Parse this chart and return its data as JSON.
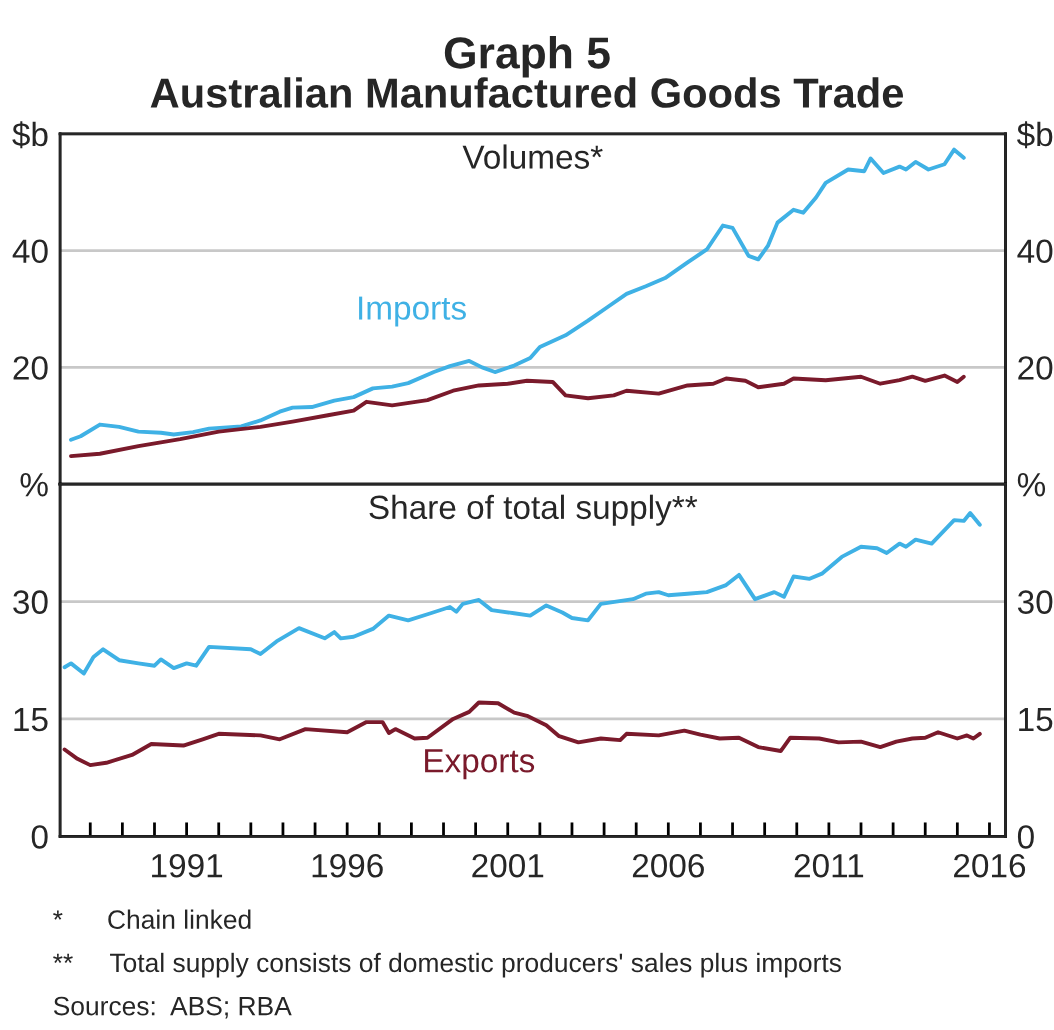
{
  "chart_data": [
    {
      "type": "line",
      "title": "Graph 5",
      "subtitle": "Australian Manufactured Goods Trade",
      "annotations": [
        "Volumes*"
      ],
      "tick_labels": "y",
      "grid": "y",
      "legend": false,
      "xlim": [
        1987.06,
        2016.5
      ],
      "ylim": [
        0,
        60
      ],
      "yticks": [
        20,
        40,
        {
          "value": 60,
          "label": "$b"
        }
      ],
      "y2lim": [
        0,
        60
      ],
      "y2ticks": [
        20,
        40,
        {
          "value": 60,
          "label": "$b"
        }
      ],
      "series": [
        {
          "name": "Imports",
          "color": "#3fb1e5",
          "x": [
            1987.4,
            1987.7,
            1988.3,
            1988.9,
            1989.5,
            1990.2,
            1990.6,
            1991.2,
            1991.7,
            1992.7,
            1993.3,
            1993.9,
            1994.3,
            1994.9,
            1995.6,
            1996.2,
            1996.8,
            1997.4,
            1997.9,
            1998.7,
            1999.2,
            1999.8,
            2000.2,
            2000.6,
            2001.2,
            2001.7,
            2002.0,
            2002.8,
            2003.5,
            2004.1,
            2004.7,
            2005.3,
            2005.9,
            2006.6,
            2007.2,
            2007.7,
            2008.0,
            2008.5,
            2008.8,
            2009.1,
            2009.4,
            2009.9,
            2010.2,
            2010.6,
            2010.9,
            2011.6,
            2012.1,
            2012.3,
            2012.7,
            2013.2,
            2013.4,
            2013.7,
            2014.1,
            2014.6,
            2014.9,
            2015.2
          ],
          "values": [
            7.6,
            8.2,
            10.2,
            9.8,
            9.0,
            8.8,
            8.5,
            8.9,
            9.5,
            9.9,
            10.9,
            12.4,
            13.1,
            13.2,
            14.3,
            14.9,
            16.4,
            16.7,
            17.3,
            19.2,
            20.2,
            21.1,
            20.0,
            19.2,
            20.3,
            21.6,
            23.5,
            25.5,
            28.0,
            30.3,
            32.6,
            33.9,
            35.3,
            38.0,
            40.2,
            44.3,
            43.9,
            39.1,
            38.5,
            40.8,
            44.8,
            47.0,
            46.5,
            49.1,
            51.6,
            53.9,
            53.6,
            55.8,
            53.3,
            54.4,
            53.9,
            55.2,
            53.9,
            54.8,
            57.3,
            55.9
          ]
        },
        {
          "color": "#7a1a2b",
          "x": [
            1987.4,
            1988.3,
            1989.5,
            1990.8,
            1992.0,
            1993.3,
            1994.3,
            1995.4,
            1996.2,
            1996.6,
            1997.4,
            1998.5,
            1999.3,
            2000.1,
            2001.0,
            2001.6,
            2002.4,
            2002.8,
            2003.5,
            2004.3,
            2004.7,
            2005.7,
            2006.6,
            2007.4,
            2007.8,
            2008.4,
            2008.8,
            2009.6,
            2009.9,
            2010.9,
            2012.0,
            2012.6,
            2013.2,
            2013.6,
            2014.0,
            2014.6,
            2015.0,
            2015.2
          ],
          "values": [
            4.8,
            5.2,
            6.5,
            7.7,
            9.0,
            9.8,
            10.7,
            11.8,
            12.6,
            14.1,
            13.5,
            14.4,
            16.0,
            16.9,
            17.2,
            17.7,
            17.5,
            15.2,
            14.7,
            15.2,
            16.0,
            15.5,
            16.9,
            17.2,
            18.1,
            17.7,
            16.6,
            17.2,
            18.1,
            17.8,
            18.4,
            17.2,
            17.8,
            18.4,
            17.7,
            18.6,
            17.5,
            18.4
          ]
        }
      ]
    },
    {
      "type": "line",
      "annotations": [
        "Share of total supply**",
        "*      Chain linked",
        "**     Total supply consists of domestic producers' sales plus imports",
        "Sources:  ABS; RBA"
      ],
      "grid": "y",
      "legend": false,
      "xlim": [
        1987.06,
        2016.5
      ],
      "xticks": [
        {
          "value": 1988,
          "label": null
        },
        {
          "value": 1989,
          "label": null
        },
        {
          "value": 1990,
          "label": null
        },
        1991,
        {
          "value": 1992,
          "label": null
        },
        {
          "value": 1993,
          "label": null
        },
        {
          "value": 1994,
          "label": null
        },
        {
          "value": 1995,
          "label": null
        },
        1996,
        {
          "value": 1997,
          "label": null
        },
        {
          "value": 1998,
          "label": null
        },
        {
          "value": 1999,
          "label": null
        },
        {
          "value": 2000,
          "label": null
        },
        2001,
        {
          "value": 2002,
          "label": null
        },
        {
          "value": 2003,
          "label": null
        },
        {
          "value": 2004,
          "label": null
        },
        {
          "value": 2005,
          "label": null
        },
        2006,
        {
          "value": 2007,
          "label": null
        },
        {
          "value": 2008,
          "label": null
        },
        {
          "value": 2009,
          "label": null
        },
        {
          "value": 2010,
          "label": null
        },
        2011,
        {
          "value": 2012,
          "label": null
        },
        {
          "value": 2013,
          "label": null
        },
        {
          "value": 2014,
          "label": null
        },
        {
          "value": 2015,
          "label": null
        },
        2016
      ],
      "ylim": [
        0,
        45
      ],
      "yticks": [
        0,
        15,
        30,
        {
          "value": 45,
          "label": "%"
        }
      ],
      "y2lim": [
        0,
        45
      ],
      "y2ticks": [
        0,
        15,
        30,
        {
          "value": 45,
          "label": "%"
        }
      ],
      "series": [
        {
          "color": "#3fb1e5",
          "x": [
            1987.2,
            1987.4,
            1987.8,
            1988.1,
            1988.4,
            1988.9,
            1989.5,
            1990.0,
            1990.2,
            1990.6,
            1991.0,
            1991.3,
            1991.7,
            1993.0,
            1993.3,
            1993.8,
            1994.5,
            1995.3,
            1995.6,
            1995.8,
            1996.2,
            1996.8,
            1997.3,
            1997.9,
            1998.6,
            1999.2,
            1999.4,
            1999.6,
            2000.1,
            2000.5,
            2001.2,
            2001.7,
            2002.2,
            2002.7,
            2003.0,
            2003.5,
            2003.9,
            2004.9,
            2005.3,
            2005.7,
            2006.0,
            2006.6,
            2007.2,
            2007.8,
            2008.2,
            2008.7,
            2009.3,
            2009.6,
            2009.9,
            2010.4,
            2010.8,
            2011.4,
            2012.0,
            2012.5,
            2012.8,
            2013.2,
            2013.4,
            2013.7,
            2014.2,
            2014.9,
            2015.2,
            2015.4,
            2015.7
          ],
          "values": [
            21.6,
            22.1,
            20.8,
            22.9,
            23.9,
            22.5,
            22.1,
            21.8,
            22.6,
            21.5,
            22.1,
            21.8,
            24.2,
            23.9,
            23.3,
            24.9,
            26.6,
            25.3,
            26.1,
            25.3,
            25.5,
            26.5,
            28.2,
            27.6,
            28.5,
            29.3,
            28.7,
            29.7,
            30.2,
            28.9,
            28.5,
            28.2,
            29.5,
            28.6,
            27.9,
            27.6,
            29.7,
            30.3,
            31.0,
            31.2,
            30.8,
            31.0,
            31.2,
            32.1,
            33.4,
            30.3,
            31.2,
            30.6,
            33.2,
            32.9,
            33.6,
            35.7,
            37.0,
            36.8,
            36.2,
            37.4,
            37.0,
            37.9,
            37.4,
            40.4,
            40.3,
            41.3,
            39.8
          ]
        },
        {
          "name": "Exports",
          "color": "#7a1a2b",
          "x": [
            1987.2,
            1987.6,
            1988.0,
            1988.5,
            1989.3,
            1989.9,
            1990.9,
            1991.5,
            1992.0,
            1993.3,
            1993.9,
            1994.7,
            1996.0,
            1996.6,
            1997.1,
            1997.3,
            1997.5,
            1998.1,
            1998.5,
            1999.3,
            1999.8,
            2000.1,
            2000.7,
            2001.2,
            2001.6,
            2002.2,
            2002.6,
            2003.2,
            2003.9,
            2004.5,
            2004.7,
            2005.7,
            2006.5,
            2007.0,
            2007.6,
            2008.2,
            2008.8,
            2009.5,
            2009.8,
            2010.7,
            2011.3,
            2012.0,
            2012.6,
            2013.1,
            2013.6,
            2014.0,
            2014.4,
            2015.0,
            2015.3,
            2015.5,
            2015.7
          ],
          "values": [
            11.1,
            9.9,
            9.1,
            9.4,
            10.4,
            11.8,
            11.6,
            12.4,
            13.1,
            12.9,
            12.4,
            13.7,
            13.3,
            14.6,
            14.6,
            13.2,
            13.7,
            12.5,
            12.6,
            15.0,
            15.9,
            17.1,
            17.0,
            15.8,
            15.4,
            14.2,
            12.8,
            12.0,
            12.5,
            12.3,
            13.1,
            12.9,
            13.5,
            13.0,
            12.5,
            12.6,
            11.4,
            10.9,
            12.6,
            12.5,
            12.0,
            12.1,
            11.4,
            12.1,
            12.5,
            12.6,
            13.3,
            12.5,
            12.9,
            12.5,
            13.1
          ]
        }
      ]
    }
  ]
}
